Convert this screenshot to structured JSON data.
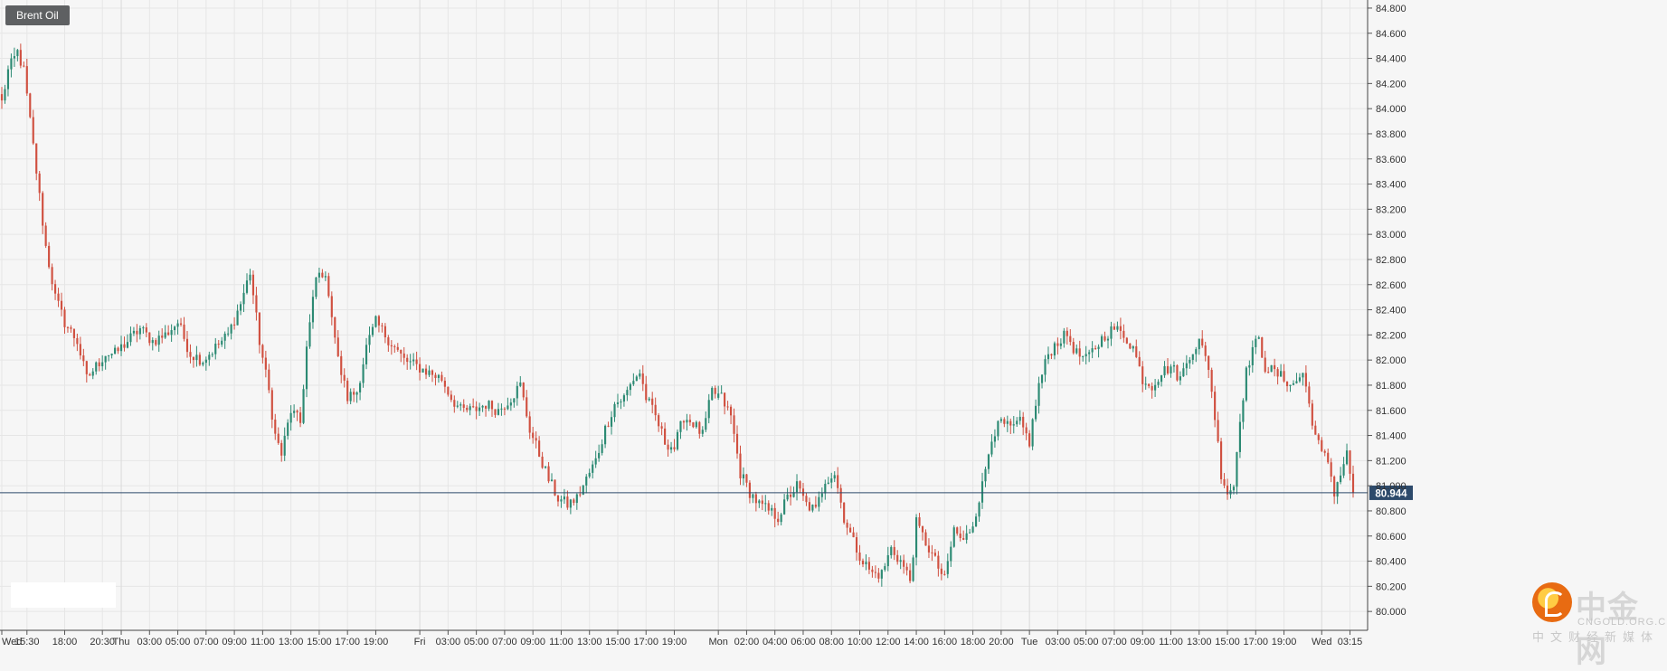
{
  "chart_data": {
    "type": "candlestick",
    "title": "Brent Oil",
    "current_price": "80.944",
    "ylim": [
      79.85,
      84.85
    ],
    "y_ticks": [
      "80.000",
      "80.200",
      "80.400",
      "80.600",
      "80.800",
      "81.000",
      "81.200",
      "81.400",
      "81.600",
      "81.800",
      "82.000",
      "82.200",
      "82.400",
      "82.600",
      "82.800",
      "83.000",
      "83.200",
      "83.400",
      "83.600",
      "83.800",
      "84.000",
      "84.200",
      "84.400",
      "84.600",
      "84.800"
    ],
    "x_ticks": [
      {
        "i": 0,
        "label": "Wed"
      },
      {
        "i": 8,
        "label": "15:30"
      },
      {
        "i": 20,
        "label": "18:00"
      },
      {
        "i": 32,
        "label": "20:30"
      },
      {
        "i": 38,
        "label": "Thu"
      },
      {
        "i": 47,
        "label": "03:00"
      },
      {
        "i": 56,
        "label": "05:00"
      },
      {
        "i": 65,
        "label": "07:00"
      },
      {
        "i": 74,
        "label": "09:00"
      },
      {
        "i": 83,
        "label": "11:00"
      },
      {
        "i": 92,
        "label": "13:00"
      },
      {
        "i": 101,
        "label": "15:00"
      },
      {
        "i": 110,
        "label": "17:00"
      },
      {
        "i": 119,
        "label": "19:00"
      },
      {
        "i": 133,
        "label": "Fri"
      },
      {
        "i": 142,
        "label": "03:00"
      },
      {
        "i": 151,
        "label": "05:00"
      },
      {
        "i": 160,
        "label": "07:00"
      },
      {
        "i": 169,
        "label": "09:00"
      },
      {
        "i": 178,
        "label": "11:00"
      },
      {
        "i": 187,
        "label": "13:00"
      },
      {
        "i": 196,
        "label": "15:00"
      },
      {
        "i": 205,
        "label": "17:00"
      },
      {
        "i": 214,
        "label": "19:00"
      },
      {
        "i": 228,
        "label": "Mon"
      },
      {
        "i": 237,
        "label": "02:00"
      },
      {
        "i": 246,
        "label": "04:00"
      },
      {
        "i": 255,
        "label": "06:00"
      },
      {
        "i": 264,
        "label": "08:00"
      },
      {
        "i": 273,
        "label": "10:00"
      },
      {
        "i": 282,
        "label": "12:00"
      },
      {
        "i": 291,
        "label": "14:00"
      },
      {
        "i": 300,
        "label": "16:00"
      },
      {
        "i": 309,
        "label": "18:00"
      },
      {
        "i": 318,
        "label": "20:00"
      },
      {
        "i": 327,
        "label": "Tue"
      },
      {
        "i": 336,
        "label": "03:00"
      },
      {
        "i": 345,
        "label": "05:00"
      },
      {
        "i": 354,
        "label": "07:00"
      },
      {
        "i": 363,
        "label": "09:00"
      },
      {
        "i": 372,
        "label": "11:00"
      },
      {
        "i": 381,
        "label": "13:00"
      },
      {
        "i": 390,
        "label": "15:00"
      },
      {
        "i": 399,
        "label": "17:00"
      },
      {
        "i": 408,
        "label": "19:00"
      },
      {
        "i": 420,
        "label": "Wed"
      },
      {
        "i": 429,
        "label": "03:15"
      }
    ],
    "day_separators": [
      38,
      133,
      228,
      327,
      420
    ],
    "anchors": [
      [
        0,
        84.05
      ],
      [
        2,
        84.3
      ],
      [
        5,
        84.45
      ],
      [
        7,
        84.3
      ],
      [
        9,
        83.9
      ],
      [
        12,
        83.3
      ],
      [
        14,
        82.9
      ],
      [
        17,
        82.5
      ],
      [
        20,
        82.3
      ],
      [
        24,
        82.15
      ],
      [
        27,
        81.85
      ],
      [
        30,
        81.95
      ],
      [
        33,
        82.05
      ],
      [
        36,
        82.05
      ],
      [
        40,
        82.15
      ],
      [
        44,
        82.25
      ],
      [
        48,
        82.15
      ],
      [
        52,
        82.2
      ],
      [
        56,
        82.3
      ],
      [
        60,
        82.05
      ],
      [
        64,
        82.0
      ],
      [
        68,
        82.1
      ],
      [
        72,
        82.2
      ],
      [
        76,
        82.45
      ],
      [
        79,
        82.7
      ],
      [
        82,
        82.15
      ],
      [
        85,
        81.75
      ],
      [
        87,
        81.4
      ],
      [
        89,
        81.25
      ],
      [
        92,
        81.6
      ],
      [
        95,
        81.5
      ],
      [
        97,
        82.1
      ],
      [
        100,
        82.65
      ],
      [
        102,
        82.7
      ],
      [
        104,
        82.55
      ],
      [
        107,
        82.0
      ],
      [
        110,
        81.7
      ],
      [
        113,
        81.75
      ],
      [
        116,
        82.1
      ],
      [
        119,
        82.3
      ],
      [
        122,
        82.2
      ],
      [
        125,
        82.1
      ],
      [
        128,
        82.0
      ],
      [
        132,
        81.95
      ],
      [
        136,
        81.9
      ],
      [
        140,
        81.85
      ],
      [
        143,
        81.7
      ],
      [
        146,
        81.6
      ],
      [
        150,
        81.6
      ],
      [
        154,
        81.65
      ],
      [
        158,
        81.6
      ],
      [
        162,
        81.7
      ],
      [
        165,
        81.8
      ],
      [
        168,
        81.45
      ],
      [
        171,
        81.25
      ],
      [
        174,
        81.05
      ],
      [
        177,
        80.9
      ],
      [
        180,
        80.85
      ],
      [
        183,
        80.9
      ],
      [
        186,
        81.05
      ],
      [
        189,
        81.2
      ],
      [
        192,
        81.45
      ],
      [
        195,
        81.65
      ],
      [
        198,
        81.7
      ],
      [
        201,
        81.85
      ],
      [
        203,
        81.9
      ],
      [
        205,
        81.7
      ],
      [
        208,
        81.55
      ],
      [
        211,
        81.35
      ],
      [
        214,
        81.3
      ],
      [
        217,
        81.55
      ],
      [
        220,
        81.5
      ],
      [
        223,
        81.4
      ],
      [
        226,
        81.75
      ],
      [
        229,
        81.7
      ],
      [
        232,
        81.55
      ],
      [
        235,
        81.1
      ],
      [
        238,
        80.95
      ],
      [
        241,
        80.85
      ],
      [
        244,
        80.8
      ],
      [
        247,
        80.75
      ],
      [
        250,
        80.9
      ],
      [
        253,
        81.0
      ],
      [
        256,
        80.85
      ],
      [
        259,
        80.8
      ],
      [
        262,
        81.05
      ],
      [
        265,
        81.1
      ],
      [
        268,
        80.75
      ],
      [
        271,
        80.55
      ],
      [
        274,
        80.4
      ],
      [
        277,
        80.3
      ],
      [
        280,
        80.3
      ],
      [
        283,
        80.5
      ],
      [
        286,
        80.4
      ],
      [
        289,
        80.25
      ],
      [
        291,
        80.7
      ],
      [
        294,
        80.55
      ],
      [
        297,
        80.4
      ],
      [
        300,
        80.25
      ],
      [
        303,
        80.65
      ],
      [
        306,
        80.55
      ],
      [
        309,
        80.7
      ],
      [
        312,
        81.0
      ],
      [
        315,
        81.4
      ],
      [
        318,
        81.5
      ],
      [
        321,
        81.45
      ],
      [
        324,
        81.5
      ],
      [
        327,
        81.35
      ],
      [
        330,
        81.8
      ],
      [
        333,
        82.05
      ],
      [
        336,
        82.15
      ],
      [
        339,
        82.2
      ],
      [
        342,
        82.05
      ],
      [
        345,
        82.0
      ],
      [
        348,
        82.1
      ],
      [
        351,
        82.2
      ],
      [
        354,
        82.25
      ],
      [
        357,
        82.2
      ],
      [
        360,
        82.1
      ],
      [
        363,
        81.85
      ],
      [
        366,
        81.8
      ],
      [
        369,
        81.9
      ],
      [
        372,
        81.95
      ],
      [
        375,
        81.85
      ],
      [
        378,
        82.05
      ],
      [
        381,
        82.15
      ],
      [
        384,
        81.95
      ],
      [
        386,
        81.55
      ],
      [
        388,
        81.1
      ],
      [
        390,
        80.95
      ],
      [
        392,
        81.0
      ],
      [
        394,
        81.55
      ],
      [
        396,
        81.9
      ],
      [
        398,
        82.1
      ],
      [
        400,
        82.15
      ],
      [
        402,
        81.95
      ],
      [
        405,
        81.9
      ],
      [
        408,
        81.85
      ],
      [
        411,
        81.8
      ],
      [
        414,
        81.9
      ],
      [
        416,
        81.65
      ],
      [
        418,
        81.4
      ],
      [
        420,
        81.25
      ],
      [
        422,
        81.2
      ],
      [
        424,
        80.95
      ],
      [
        426,
        81.1
      ],
      [
        428,
        81.25
      ],
      [
        430,
        80.944
      ]
    ],
    "gaps": [
      136,
      228
    ]
  },
  "header": {
    "title": "Brent Oil"
  },
  "watermark": {
    "name": "中金网",
    "domain": "CNGOLD.ORG.CN",
    "slogan": "中文财经新媒体"
  },
  "colors": {
    "up": "#2c8a73",
    "down": "#d05040",
    "price_line": "#2d4a6b",
    "label_bg": "#2d4a6b",
    "background": "#f6f6f6",
    "grid": "#e6e6e6"
  }
}
